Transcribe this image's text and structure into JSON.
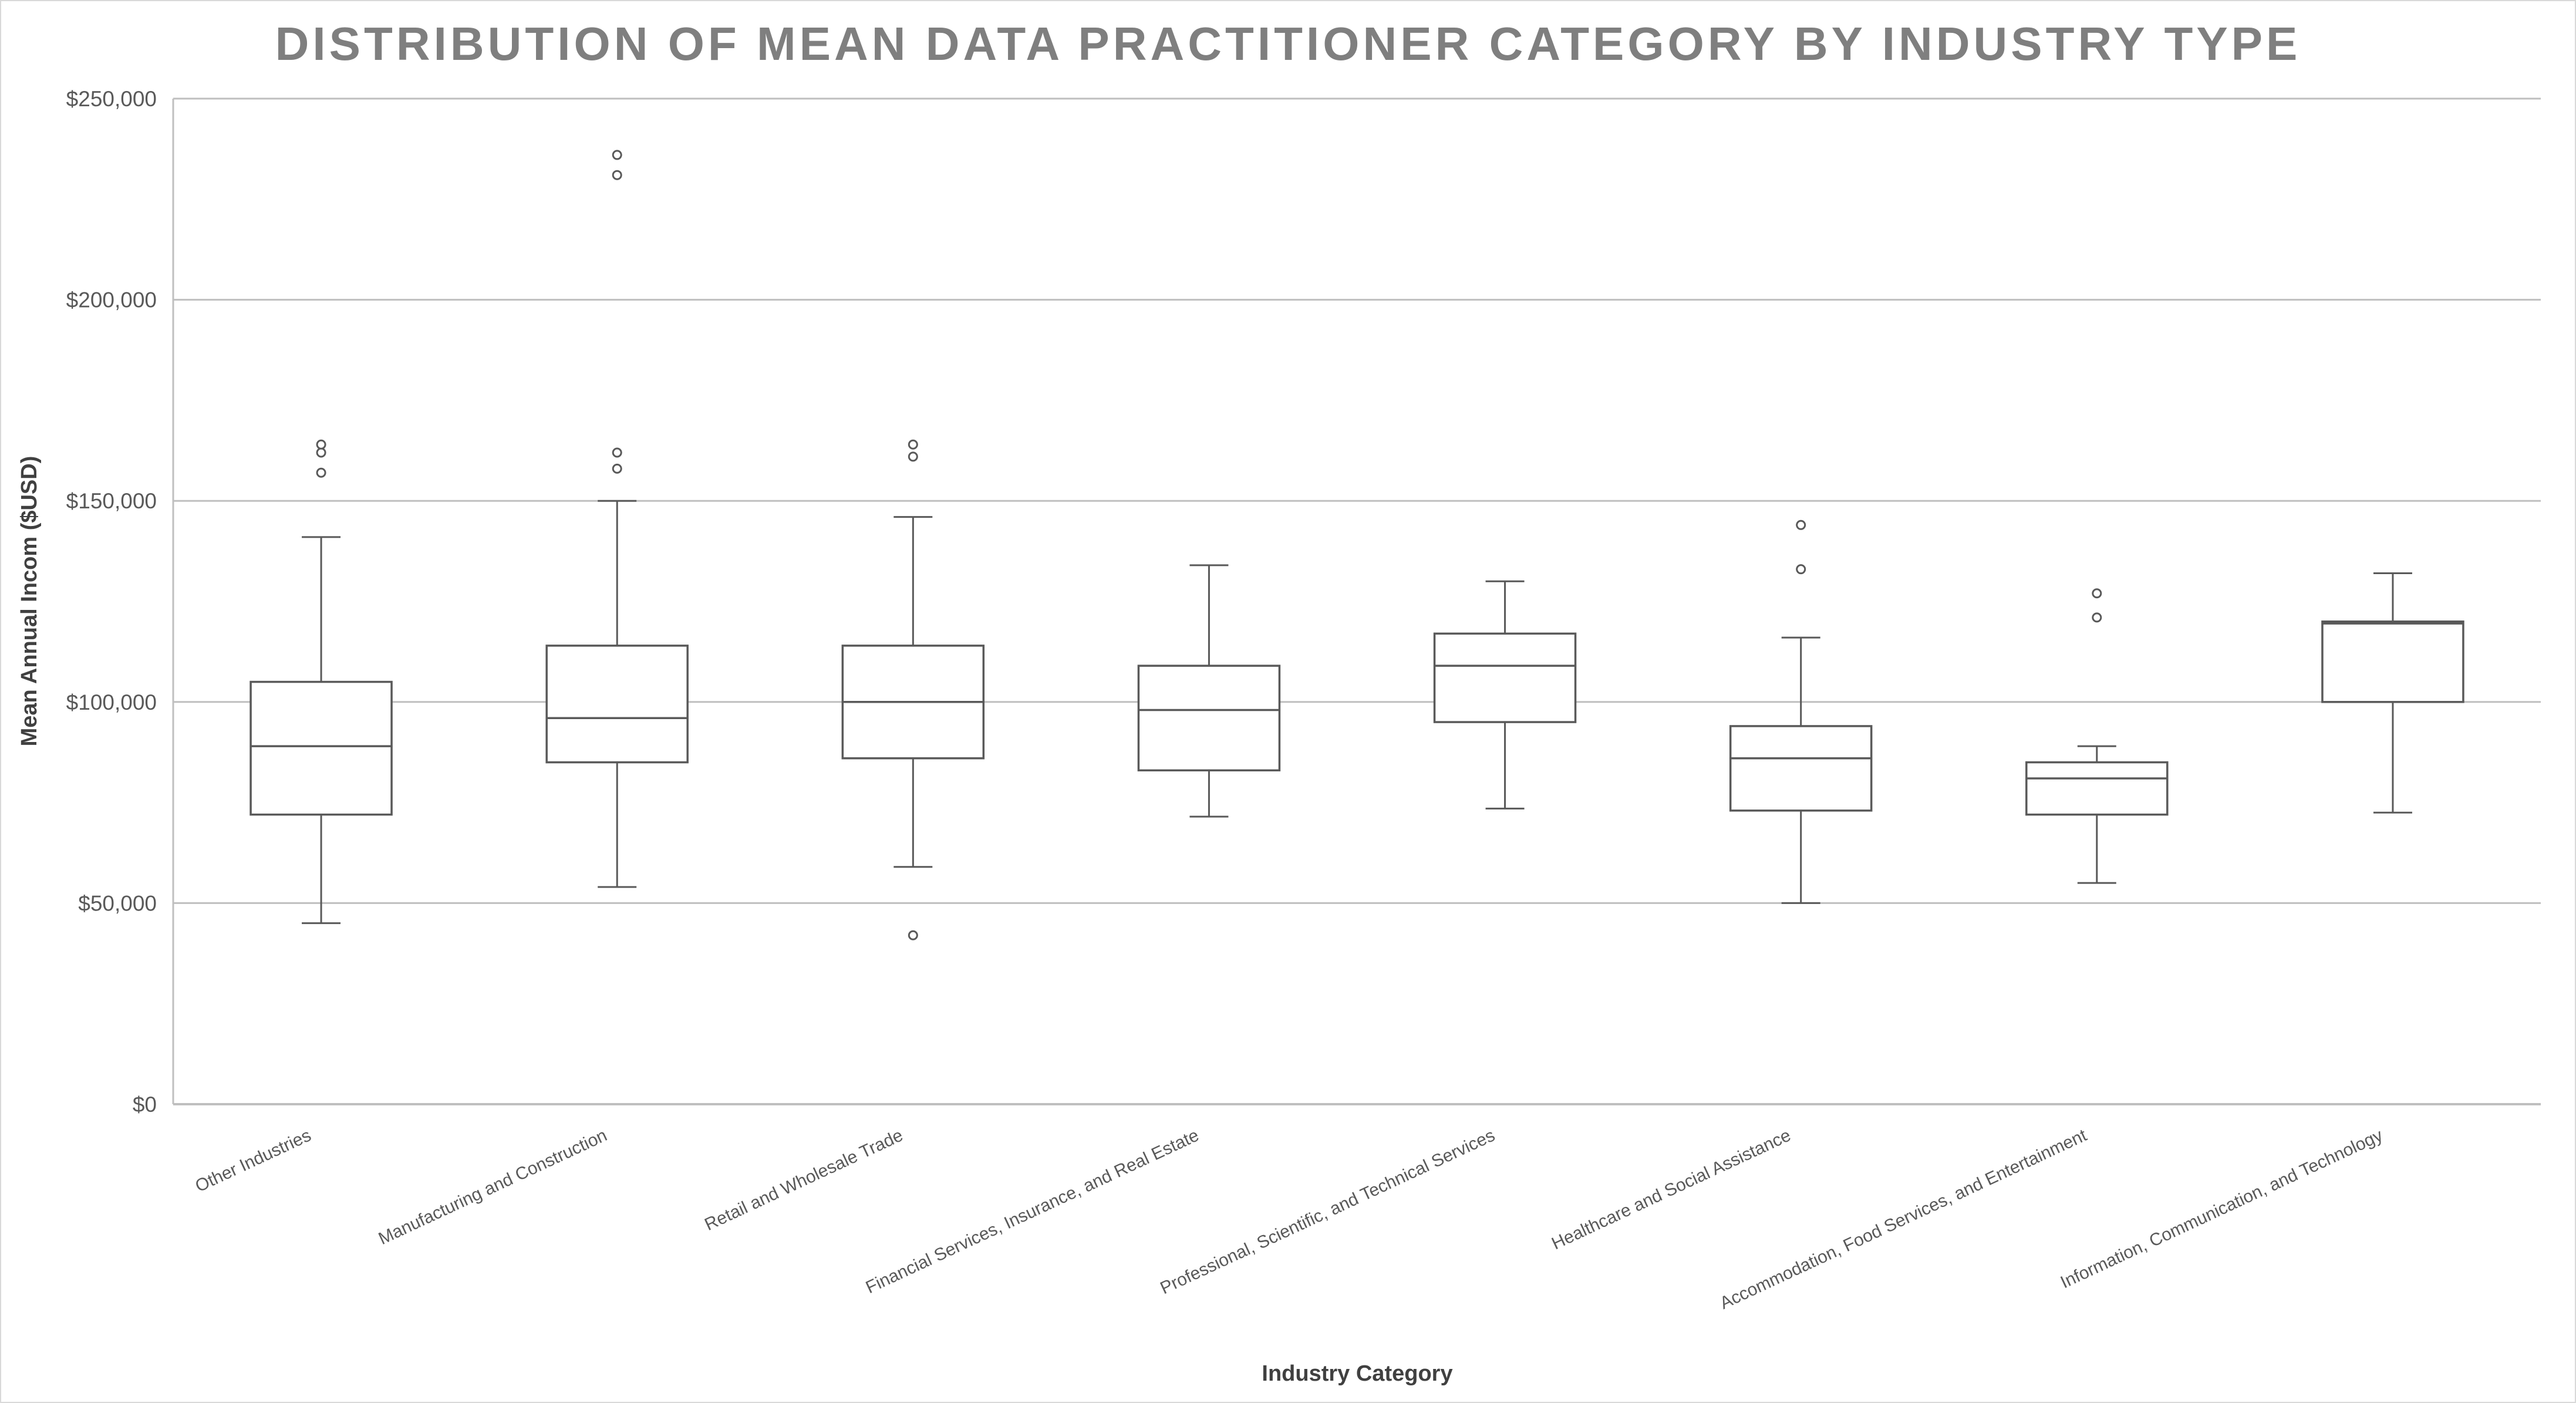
{
  "chart_data": {
    "type": "box",
    "title": "DISTRIBUTION OF MEAN DATA PRACTITIONER CATEGORY BY INDUSTRY TYPE",
    "xlabel": "Industry Category",
    "ylabel": "Mean Annual Incom ($USD)",
    "ylim": [
      0,
      250000
    ],
    "yticks": [
      0,
      50000,
      100000,
      150000,
      200000,
      250000
    ],
    "ytick_labels": [
      "$0",
      "$50,000",
      "$100,000",
      "$150,000",
      "$200,000",
      "$250,000"
    ],
    "grid": true,
    "categories": [
      "Other Industries",
      "Manufacturing and Construction",
      "Retail and Wholesale Trade",
      "Financial Services, Insurance, and Real Estate",
      "Professional, Scientific, and Technical Services",
      "Healthcare and Social Assistance",
      "Accommodation, Food Services, and Entertainment",
      "Information, Communication, and Technology"
    ],
    "boxes": [
      {
        "min": 45000,
        "q1": 72000,
        "median": 89000,
        "q3": 105000,
        "max": 141000,
        "outliers": [
          157000,
          162000,
          164000
        ]
      },
      {
        "min": 54000,
        "q1": 85000,
        "median": 96000,
        "q3": 114000,
        "max": 150000,
        "outliers": [
          158000,
          162000,
          231000,
          236000
        ]
      },
      {
        "min": 59000,
        "q1": 86000,
        "median": 100000,
        "q3": 114000,
        "max": 146000,
        "outliers": [
          42000,
          161000,
          164000
        ]
      },
      {
        "min": 71500,
        "q1": 83000,
        "median": 98000,
        "q3": 109000,
        "max": 134000,
        "outliers": []
      },
      {
        "min": 73500,
        "q1": 95000,
        "median": 109000,
        "q3": 117000,
        "max": 130000,
        "outliers": []
      },
      {
        "min": 50000,
        "q1": 73000,
        "median": 86000,
        "q3": 94000,
        "max": 116000,
        "outliers": [
          133000,
          144000
        ]
      },
      {
        "min": 55000,
        "q1": 72000,
        "median": 81000,
        "q3": 85000,
        "max": 89000,
        "outliers": [
          121000,
          127000
        ]
      },
      {
        "min": 72500,
        "q1": 100000,
        "median": 119500,
        "q3": 120000,
        "max": 132000,
        "outliers": []
      }
    ]
  }
}
